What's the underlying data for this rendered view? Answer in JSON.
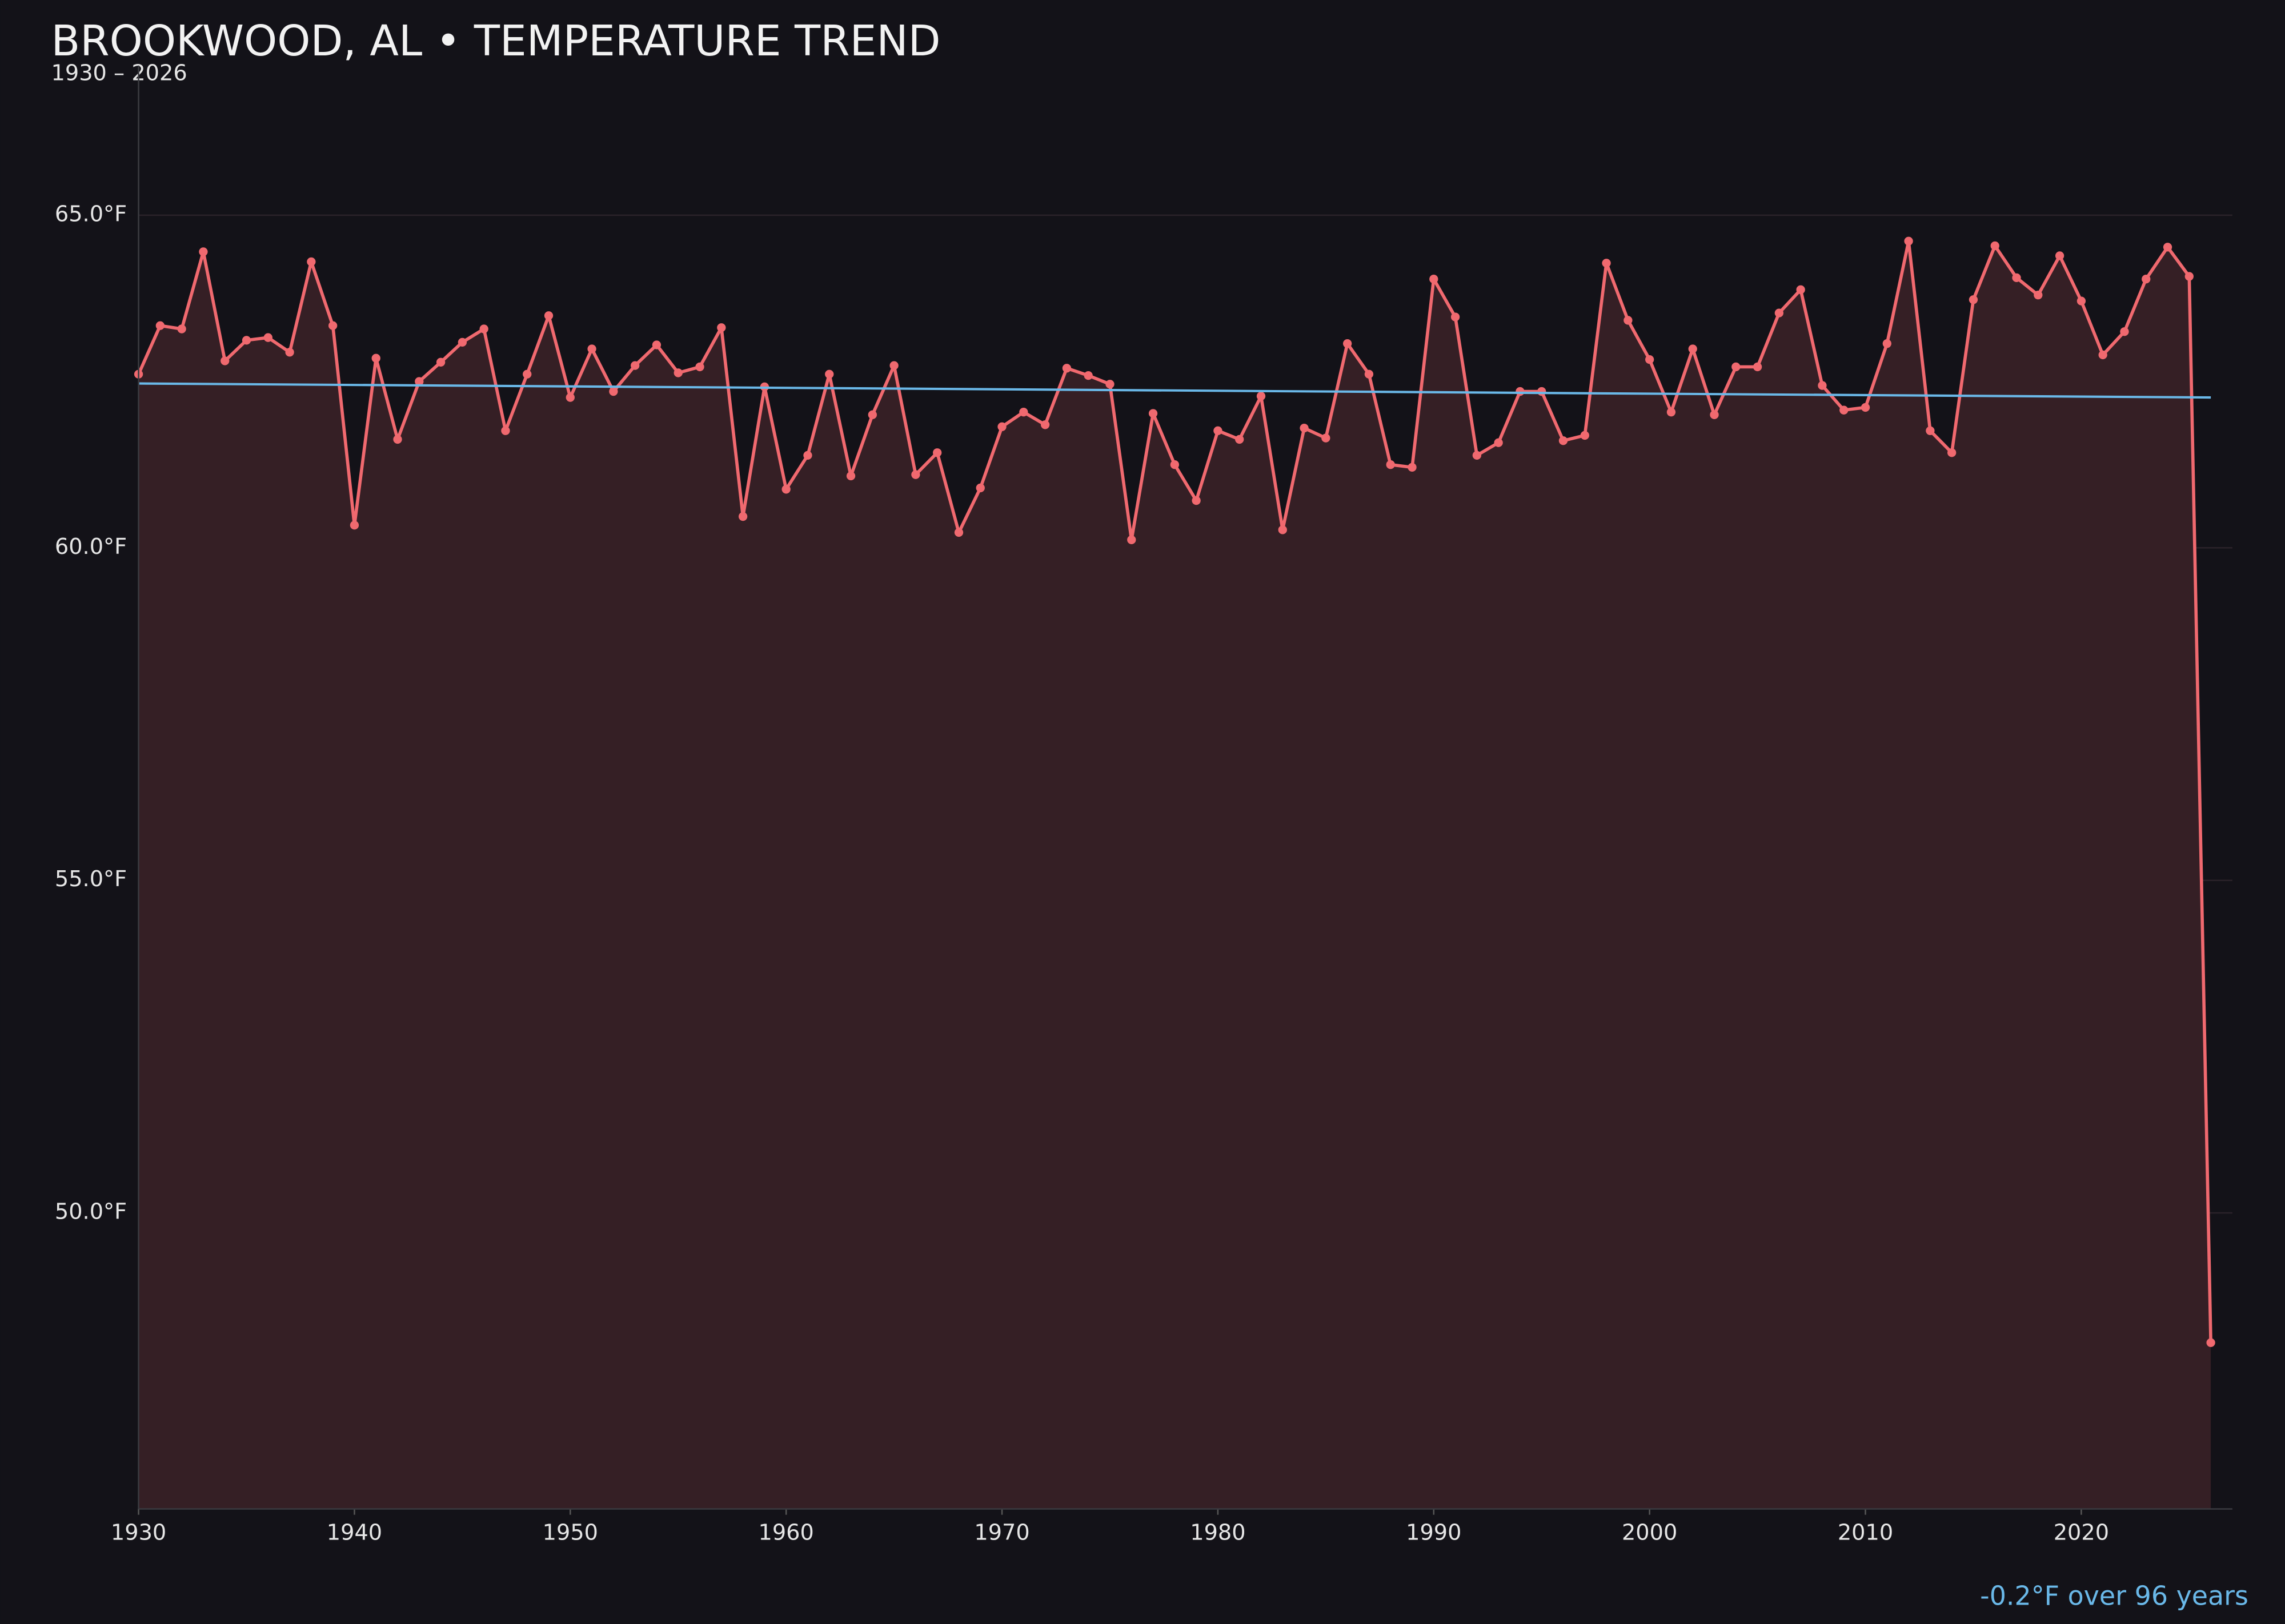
{
  "chart_data": {
    "type": "line",
    "title": "BROOKWOOD, AL • TEMPERATURE TREND",
    "subtitle": "1930 – 2026",
    "annotation": "-0.2°F over 96 years",
    "x": [
      1930,
      1931,
      1932,
      1933,
      1934,
      1935,
      1936,
      1937,
      1938,
      1939,
      1940,
      1941,
      1942,
      1943,
      1944,
      1945,
      1946,
      1947,
      1948,
      1949,
      1950,
      1951,
      1952,
      1953,
      1954,
      1955,
      1956,
      1957,
      1958,
      1959,
      1960,
      1961,
      1962,
      1963,
      1964,
      1965,
      1966,
      1967,
      1968,
      1969,
      1970,
      1971,
      1972,
      1973,
      1974,
      1975,
      1976,
      1977,
      1978,
      1979,
      1980,
      1981,
      1982,
      1983,
      1984,
      1985,
      1986,
      1987,
      1988,
      1989,
      1990,
      1991,
      1992,
      1993,
      1994,
      1995,
      1996,
      1997,
      1998,
      1999,
      2000,
      2001,
      2002,
      2003,
      2004,
      2005,
      2006,
      2007,
      2008,
      2009,
      2010,
      2011,
      2012,
      2013,
      2014,
      2015,
      2016,
      2017,
      2018,
      2019,
      2020,
      2021,
      2022,
      2023,
      2024,
      2025,
      2026
    ],
    "series": [
      {
        "color": "#f0696f",
        "fill": "#351f25",
        "values": [
          62.61,
          63.34,
          63.29,
          64.45,
          62.81,
          63.12,
          63.16,
          62.94,
          64.3,
          63.34,
          60.34,
          62.85,
          61.63,
          62.5,
          62.79,
          63.09,
          63.29,
          61.76,
          62.61,
          63.49,
          62.26,
          62.99,
          62.35,
          62.74,
          63.05,
          62.63,
          62.72,
          63.31,
          60.47,
          62.42,
          60.88,
          61.39,
          62.61,
          61.08,
          62.0,
          62.74,
          61.1,
          61.43,
          60.23,
          60.9,
          61.82,
          62.04,
          61.85,
          62.7,
          62.59,
          62.46,
          60.12,
          62.02,
          61.25,
          60.71,
          61.76,
          61.63,
          62.28,
          60.27,
          61.8,
          61.65,
          63.07,
          62.61,
          61.25,
          61.21,
          64.04,
          63.47,
          61.39,
          61.58,
          62.35,
          62.35,
          61.61,
          61.69,
          64.28,
          63.42,
          62.83,
          62.04,
          62.99,
          62.0,
          62.72,
          62.72,
          63.53,
          63.88,
          62.44,
          62.07,
          62.11,
          63.07,
          64.61,
          61.76,
          61.43,
          63.73,
          64.54,
          64.06,
          63.8,
          64.39,
          63.71,
          62.9,
          63.25,
          64.04,
          64.52,
          64.08,
          48.05
        ]
      }
    ],
    "trend": {
      "color": "#6ab8e8",
      "x": [
        1930,
        2026
      ],
      "values": [
        62.47,
        62.26
      ]
    },
    "xlim": [
      1930,
      2027
    ],
    "ylim": [
      45.55,
      67.25
    ],
    "xticks": [
      1930,
      1940,
      1950,
      1960,
      1970,
      1980,
      1990,
      2000,
      2010,
      2020
    ],
    "yticks": [
      {
        "value": 50,
        "label": "50.0°F"
      },
      {
        "value": 55,
        "label": "55.0°F"
      },
      {
        "value": 60,
        "label": "60.0°F"
      },
      {
        "value": 65,
        "label": "65.0°F"
      }
    ],
    "grid": true
  }
}
